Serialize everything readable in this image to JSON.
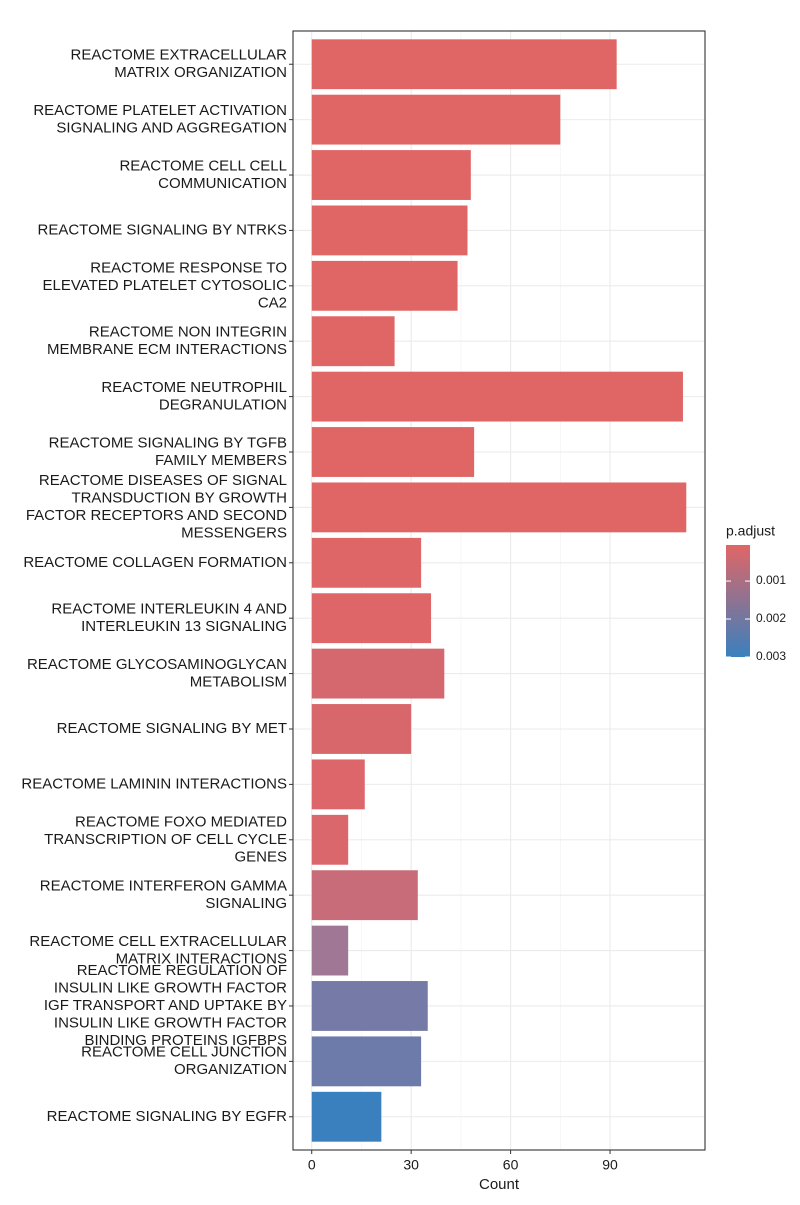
{
  "chart_data": {
    "type": "bar",
    "orientation": "horizontal",
    "x_label": "Count",
    "categories": [
      "REACTOME EXTRACELLULAR\nMATRIX ORGANIZATION",
      "REACTOME PLATELET ACTIVATION\nSIGNALING AND AGGREGATION",
      "REACTOME CELL CELL\nCOMMUNICATION",
      "REACTOME SIGNALING BY NTRKS",
      "REACTOME RESPONSE TO\nELEVATED PLATELET CYTOSOLIC\nCA2",
      "REACTOME NON INTEGRIN\nMEMBRANE ECM INTERACTIONS",
      "REACTOME NEUTROPHIL\nDEGRANULATION",
      "REACTOME SIGNALING BY TGFB\nFAMILY MEMBERS",
      "REACTOME DISEASES OF SIGNAL\nTRANSDUCTION BY GROWTH\nFACTOR RECEPTORS AND SECOND\nMESSENGERS",
      "REACTOME COLLAGEN FORMATION",
      "REACTOME INTERLEUKIN 4 AND\nINTERLEUKIN 13 SIGNALING",
      "REACTOME GLYCOSAMINOGLYCAN\nMETABOLISM",
      "REACTOME SIGNALING BY MET",
      "REACTOME LAMININ INTERACTIONS",
      "REACTOME FOXO MEDIATED\nTRANSCRIPTION OF CELL CYCLE\nGENES",
      "REACTOME INTERFERON GAMMA\nSIGNALING",
      "REACTOME CELL EXTRACELLULAR\nMATRIX INTERACTIONS",
      "REACTOME REGULATION OF\nINSULIN LIKE GROWTH FACTOR\nIGF TRANSPORT AND UPTAKE BY\nINSULIN LIKE GROWTH FACTOR\nBINDING PROTEINS IGFBPS",
      "REACTOME CELL JUNCTION\nORGANIZATION",
      "REACTOME SIGNALING BY EGFR"
    ],
    "values": [
      92,
      75,
      48,
      47,
      44,
      25,
      112,
      49,
      113,
      33,
      36,
      40,
      30,
      16,
      11,
      32,
      11,
      35,
      33,
      21
    ],
    "colors": [
      "#E06666",
      "#E06666",
      "#E06666",
      "#E06666",
      "#E06666",
      "#E06666",
      "#E06666",
      "#E06666",
      "#E06666",
      "#DF6667",
      "#DE6668",
      "#D5676E",
      "#D8676C",
      "#DC666A",
      "#D9676B",
      "#C76C78",
      "#A07896",
      "#767AA6",
      "#6D7BAA",
      "#3A80BE"
    ],
    "xlim": [
      -5.65,
      118.65
    ],
    "xticks": [
      0,
      30,
      60,
      90
    ],
    "grid": true,
    "legend": {
      "title": "p.adjust",
      "limits": [
        5e-05,
        0.003
      ],
      "colors": [
        "#E06666",
        "#3A80BE"
      ],
      "ticks": [
        0.001,
        0.002,
        0.003
      ]
    }
  }
}
